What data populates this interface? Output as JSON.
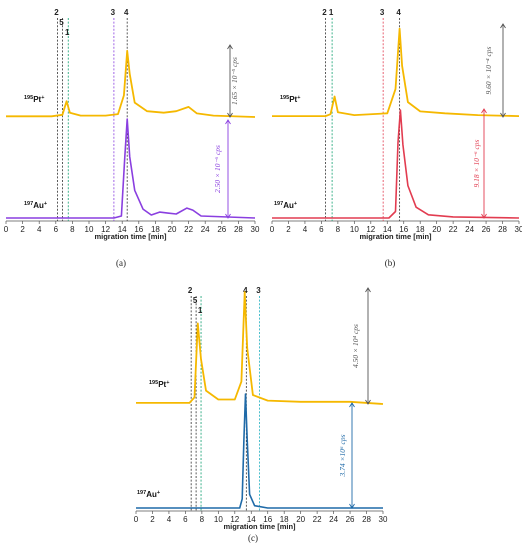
{
  "chart_data": [
    {
      "type": "line",
      "panel_label": "(a)",
      "xlabel": "migration time [min]",
      "xlim": [
        0,
        30
      ],
      "xticks": [
        0,
        2,
        4,
        6,
        8,
        10,
        12,
        14,
        16,
        18,
        20,
        22,
        24,
        26,
        28,
        30
      ],
      "series": [
        {
          "name": "195Pt+",
          "color": "#f5b800",
          "points": [
            [
              0,
              0.01
            ],
            [
              5.5,
              0.01
            ],
            [
              6.8,
              0.03
            ],
            [
              7.3,
              0.22
            ],
            [
              7.7,
              0.06
            ],
            [
              9,
              0.02
            ],
            [
              12,
              0.02
            ],
            [
              13.5,
              0.04
            ],
            [
              14.2,
              0.3
            ],
            [
              14.6,
              0.92
            ],
            [
              14.9,
              0.6
            ],
            [
              15.5,
              0.2
            ],
            [
              17,
              0.08
            ],
            [
              19,
              0.06
            ],
            [
              20.5,
              0.08
            ],
            [
              22,
              0.14
            ],
            [
              23,
              0.05
            ],
            [
              25,
              0.02
            ],
            [
              30,
              0.0
            ]
          ]
        },
        {
          "name": "197Au+",
          "color": "#8a3fe0",
          "points": [
            [
              0,
              0.0
            ],
            [
              13,
              0.0
            ],
            [
              13.9,
              0.02
            ],
            [
              14.3,
              0.6
            ],
            [
              14.6,
              1.0
            ],
            [
              14.9,
              0.62
            ],
            [
              15.5,
              0.28
            ],
            [
              16.5,
              0.09
            ],
            [
              17.5,
              0.03
            ],
            [
              18.5,
              0.06
            ],
            [
              19.5,
              0.05
            ],
            [
              20.5,
              0.04
            ],
            [
              21.8,
              0.1
            ],
            [
              22.5,
              0.08
            ],
            [
              23.5,
              0.02
            ],
            [
              30,
              0.0
            ]
          ]
        }
      ],
      "markers": [
        {
          "label": "2",
          "x": 6.2,
          "color": "#333333"
        },
        {
          "label": "5",
          "x": 6.8,
          "color": "#333333"
        },
        {
          "label": "1",
          "x": 7.5,
          "color": "#10a070"
        },
        {
          "label": "3",
          "x": 13.0,
          "color": "#8a3fe0"
        },
        {
          "label": "4",
          "x": 14.6,
          "color": "#333333"
        }
      ],
      "scales": [
        {
          "text": "1.65 × 10⁻⁵ cps",
          "color": "#555555"
        },
        {
          "text": "2.50 × 10⁻⁶ cps",
          "color": "#8a3fe0"
        }
      ],
      "ion_labels": [
        {
          "sup": "195",
          "base": "Pt",
          "charge": "+"
        },
        {
          "sup": "197",
          "base": "Au",
          "charge": "+"
        }
      ]
    },
    {
      "type": "line",
      "panel_label": "(b)",
      "xlabel": "migration time [min]",
      "xlim": [
        0,
        30
      ],
      "xticks": [
        0,
        2,
        4,
        6,
        8,
        10,
        12,
        14,
        16,
        18,
        20,
        22,
        24,
        26,
        28,
        30
      ],
      "series": [
        {
          "name": "195Pt+",
          "color": "#f5b800",
          "points": [
            [
              0,
              0.01
            ],
            [
              6.5,
              0.01
            ],
            [
              7.1,
              0.03
            ],
            [
              7.6,
              0.22
            ],
            [
              8.0,
              0.05
            ],
            [
              10,
              0.02
            ],
            [
              14,
              0.04
            ],
            [
              15.0,
              0.3
            ],
            [
              15.5,
              0.95
            ],
            [
              15.8,
              0.55
            ],
            [
              16.5,
              0.16
            ],
            [
              18,
              0.06
            ],
            [
              21,
              0.04
            ],
            [
              25,
              0.02
            ],
            [
              30,
              0.01
            ]
          ]
        },
        {
          "name": "197Au+",
          "color": "#e23c50",
          "points": [
            [
              0,
              0.0
            ],
            [
              14.2,
              0.0
            ],
            [
              15.0,
              0.06
            ],
            [
              15.3,
              0.7
            ],
            [
              15.6,
              1.0
            ],
            [
              15.9,
              0.68
            ],
            [
              16.5,
              0.3
            ],
            [
              17.5,
              0.1
            ],
            [
              19,
              0.03
            ],
            [
              22,
              0.01
            ],
            [
              30,
              0.0
            ]
          ]
        }
      ],
      "markers": [
        {
          "label": "2",
          "x": 6.5,
          "color": "#333333"
        },
        {
          "label": "1",
          "x": 7.3,
          "color": "#10a070"
        },
        {
          "label": "3",
          "x": 13.5,
          "color": "#e23c50"
        },
        {
          "label": "4",
          "x": 15.5,
          "color": "#333333"
        }
      ],
      "scales": [
        {
          "text": "9.60 × 10⁻⁴ cps",
          "color": "#555555"
        },
        {
          "text": "9.18 × 10⁻⁶ cps",
          "color": "#e23c50"
        }
      ],
      "ion_labels": [
        {
          "sup": "195",
          "base": "Pt",
          "charge": "+"
        },
        {
          "sup": "197",
          "base": "Au",
          "charge": "+"
        }
      ]
    },
    {
      "type": "line",
      "panel_label": "(c)",
      "xlabel": "migration time [min]",
      "xlim": [
        0,
        30
      ],
      "xticks": [
        0,
        2,
        4,
        6,
        8,
        10,
        12,
        14,
        16,
        18,
        20,
        22,
        24,
        26,
        28,
        30
      ],
      "series": [
        {
          "name": "195Pt+",
          "color": "#f5b800",
          "points": [
            [
              0,
              0.01
            ],
            [
              6.5,
              0.01
            ],
            [
              7.1,
              0.06
            ],
            [
              7.5,
              0.72
            ],
            [
              7.9,
              0.4
            ],
            [
              8.5,
              0.12
            ],
            [
              10,
              0.04
            ],
            [
              12,
              0.04
            ],
            [
              12.8,
              0.2
            ],
            [
              13.2,
              1.0
            ],
            [
              13.5,
              0.5
            ],
            [
              14.2,
              0.08
            ],
            [
              16,
              0.03
            ],
            [
              20,
              0.02
            ],
            [
              26,
              0.02
            ],
            [
              30,
              0.0
            ]
          ]
        },
        {
          "name": "197Au+",
          "color": "#1f6aa8",
          "points": [
            [
              0,
              0.0
            ],
            [
              12.6,
              0.0
            ],
            [
              12.9,
              0.08
            ],
            [
              13.1,
              0.6
            ],
            [
              13.3,
              1.0
            ],
            [
              13.5,
              0.6
            ],
            [
              13.8,
              0.12
            ],
            [
              14.4,
              0.02
            ],
            [
              16,
              0.0
            ],
            [
              30,
              0.0
            ]
          ]
        }
      ],
      "markers": [
        {
          "label": "2",
          "x": 6.7,
          "color": "#333333"
        },
        {
          "label": "5",
          "x": 7.3,
          "color": "#333333"
        },
        {
          "label": "1",
          "x": 7.9,
          "color": "#10a070"
        },
        {
          "label": "4",
          "x": 13.4,
          "color": "#333333"
        },
        {
          "label": "3",
          "x": 15.0,
          "color": "#20b0c0"
        }
      ],
      "scales": [
        {
          "text": "4.50 × 10⁴ cps",
          "color": "#555555"
        },
        {
          "text": "3.74 ×10⁶ cps",
          "color": "#1f6aa8"
        }
      ],
      "ion_labels": [
        {
          "sup": "195",
          "base": "Pt",
          "charge": "+"
        },
        {
          "sup": "197",
          "base": "Au",
          "charge": "+"
        }
      ]
    }
  ]
}
